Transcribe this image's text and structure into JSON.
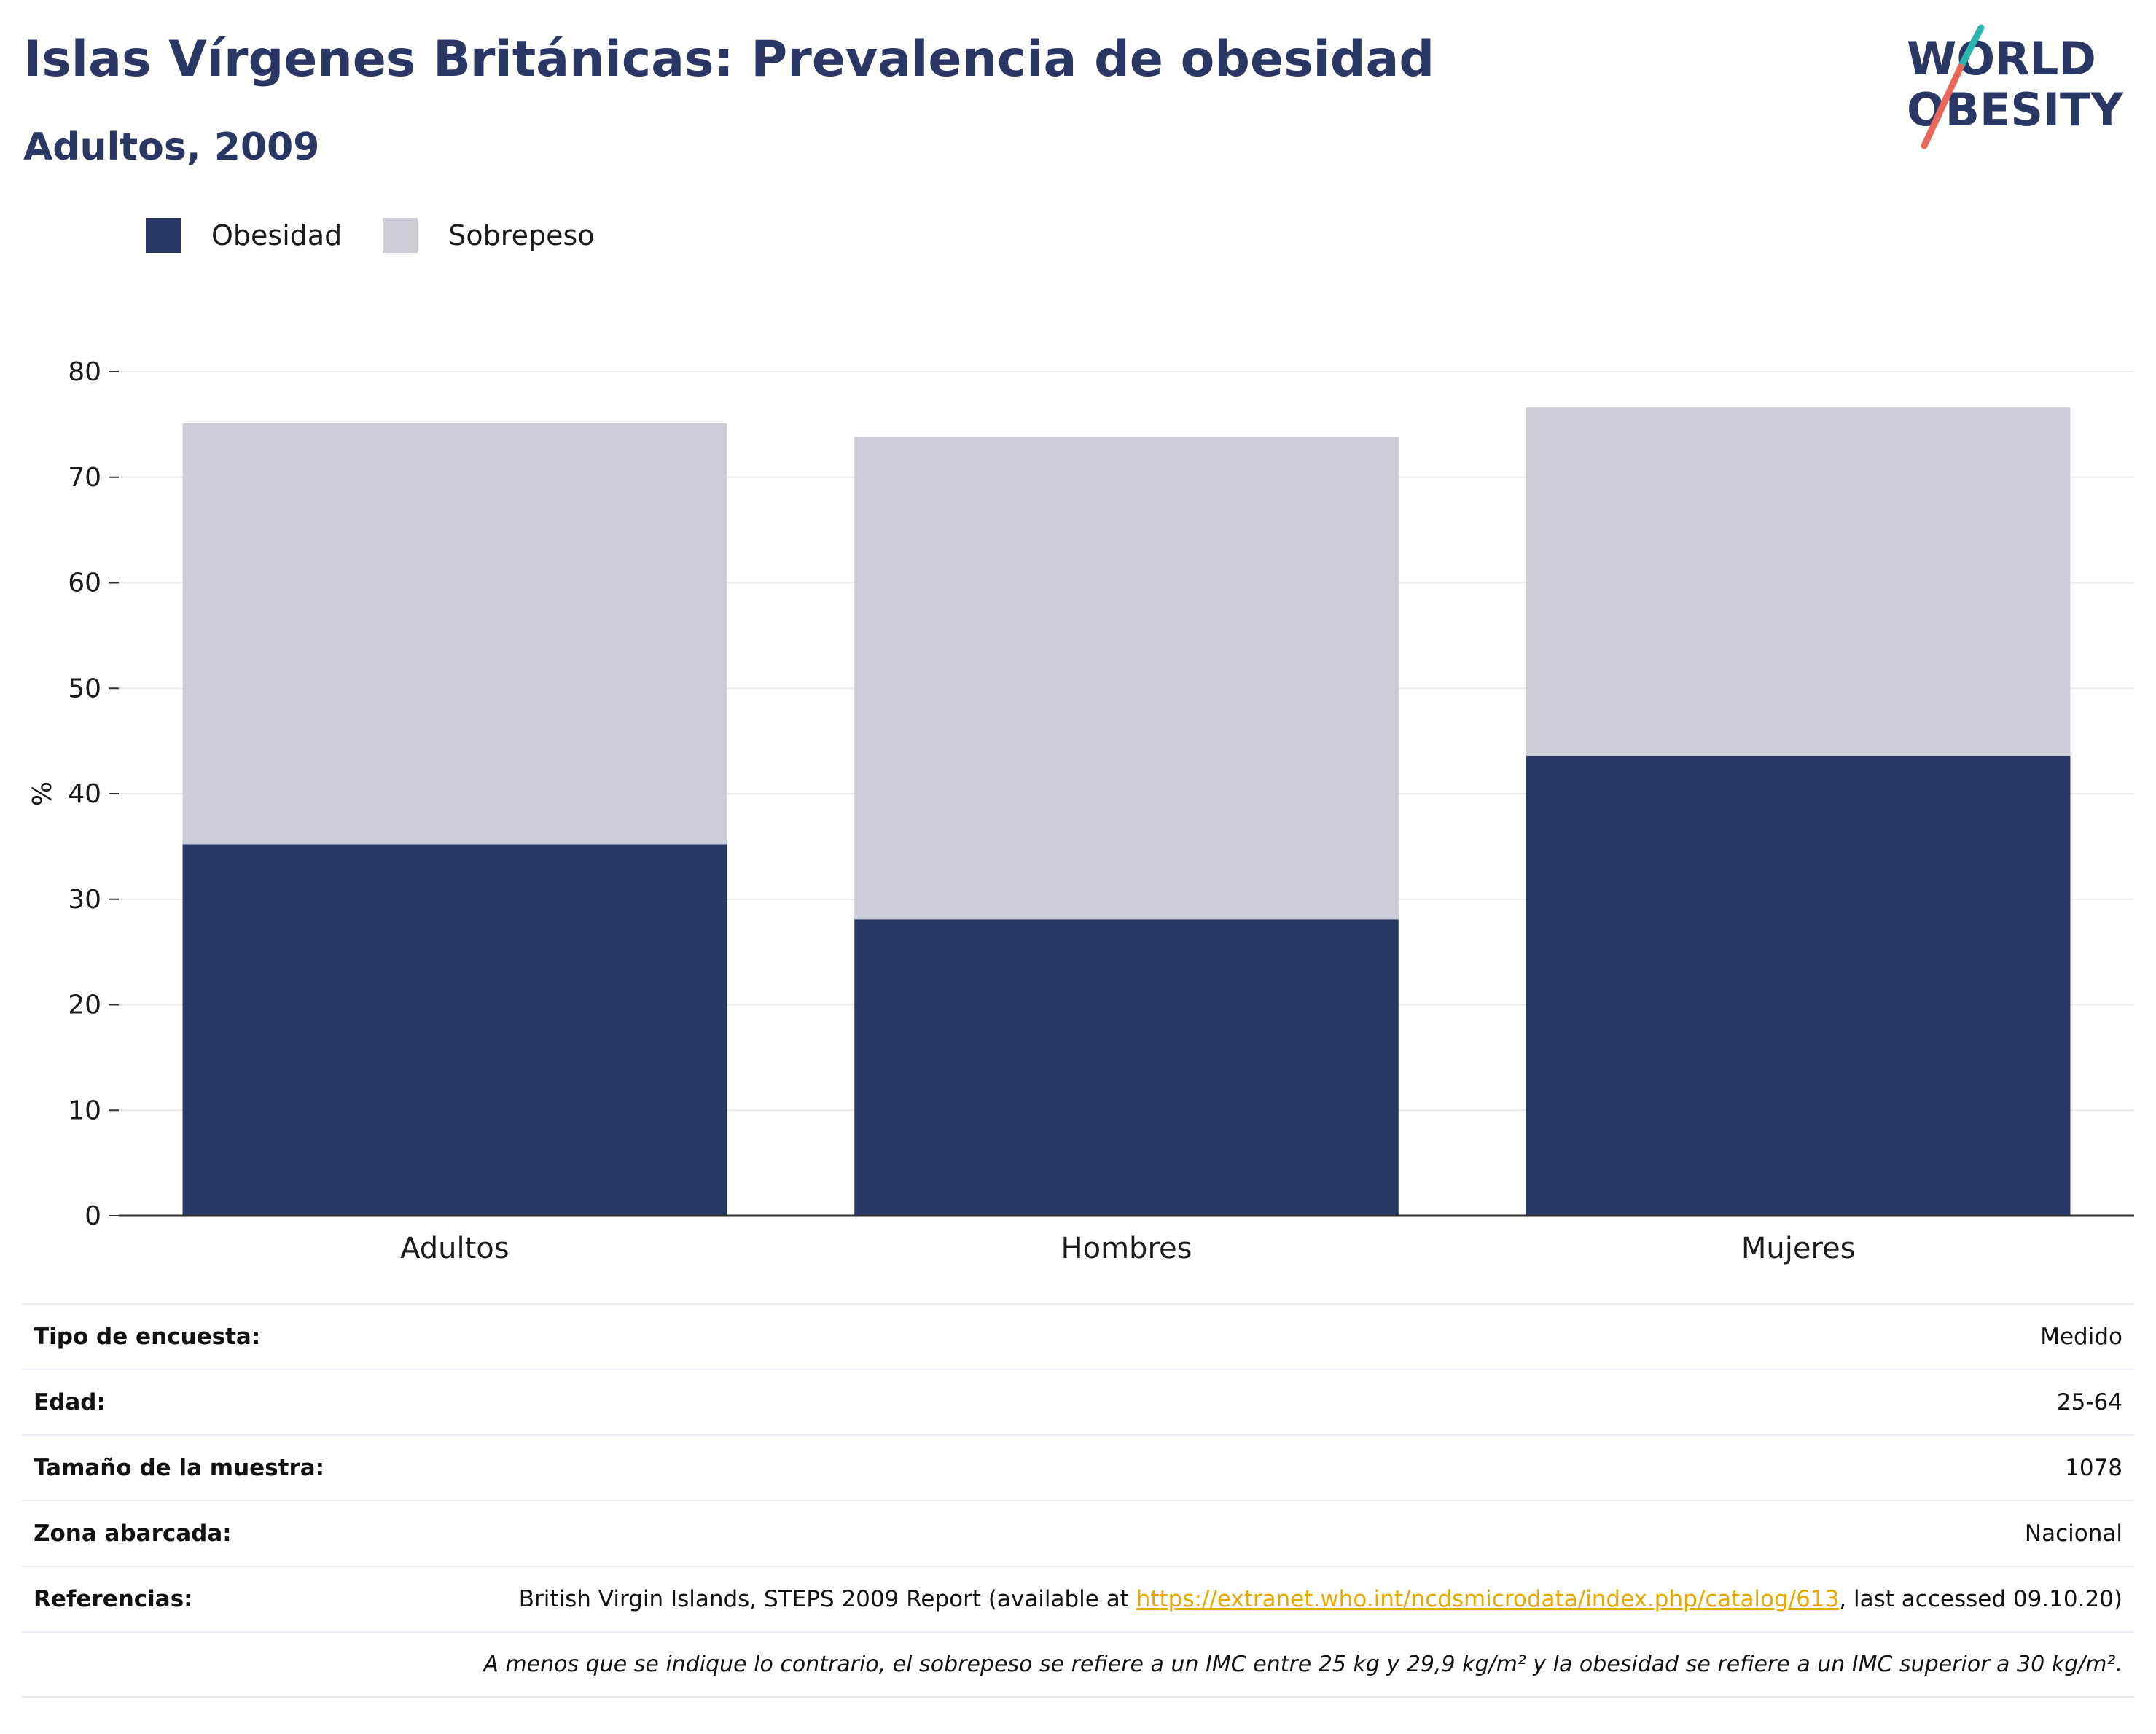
{
  "header": {
    "title": "Islas Vírgenes Británicas: Prevalencia de obesidad",
    "subtitle": "Adultos, 2009"
  },
  "logo": {
    "line1": "WORLD",
    "line2": "OBESITY",
    "name": "world-obesity-logo"
  },
  "colors": {
    "obesity": "#2a3663",
    "overweight": "#cbcdd8",
    "text": "#2a3663",
    "link": "#e8a800"
  },
  "legend": [
    {
      "label": "Obesidad",
      "color": "#2a3663"
    },
    {
      "label": "Sobrepeso",
      "color": "#cbcdd8"
    }
  ],
  "chart_data": {
    "type": "bar",
    "stacked": true,
    "categories": [
      "Adultos",
      "Hombres",
      "Mujeres"
    ],
    "series": [
      {
        "name": "Obesidad",
        "values": [
          35.2,
          28.1,
          43.6
        ]
      },
      {
        "name": "Sobrepeso",
        "values": [
          39.9,
          45.7,
          33.0
        ]
      }
    ],
    "ylabel": "%",
    "ylim": [
      0,
      80
    ],
    "yticks": [
      0,
      10,
      20,
      30,
      40,
      50,
      60,
      70,
      80
    ],
    "grid": true,
    "legend_position": "top-left"
  },
  "info": {
    "rows": [
      {
        "key": "Tipo de encuesta:",
        "value": "Medido"
      },
      {
        "key": "Edad:",
        "value": "25-64"
      },
      {
        "key": "Tamaño de la muestra:",
        "value": "1078"
      },
      {
        "key": "Zona abarcada:",
        "value": "Nacional"
      }
    ],
    "reference": {
      "key": "Referencias:",
      "prefix": "British Virgin Islands, STEPS 2009 Report (available at ",
      "link": "https://extranet.who.int/ncdsmicrodata/index.php/catalog/613",
      "suffix": ", last accessed 09.10.20)"
    },
    "note": "A menos que se indique lo contrario, el sobrepeso se refiere a un IMC entre 25 kg y 29,9 kg/m² y la obesidad se refiere a un IMC superior a 30 kg/m²."
  }
}
